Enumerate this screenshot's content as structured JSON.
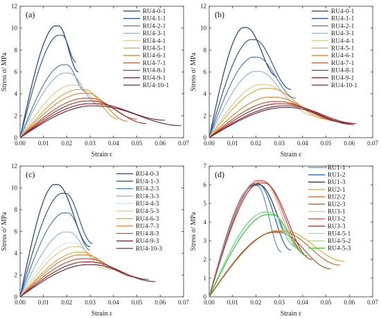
{
  "chart_data": [
    {
      "type": "line",
      "panel_label": "(a)",
      "xlabel": "Strain ε",
      "ylabel": "Stress σ/ MPa",
      "xlim": [
        0,
        0.07
      ],
      "ylim": [
        0,
        12
      ],
      "xticks": [
        "0.00",
        "0.01",
        "0.02",
        "0.03",
        "0.04",
        "0.05",
        "0.06",
        "0.07"
      ],
      "yticks": [
        "0",
        "2",
        "4",
        "6",
        "8",
        "10",
        "12"
      ],
      "grid": false,
      "legend_position": "top-right",
      "series": [
        {
          "name": "RU4-0-1",
          "color": "#1f3f7a",
          "peak_strain": 0.0165,
          "peak_stress": 10.2,
          "end_strain": 0.025,
          "end_stress": 6.0
        },
        {
          "name": "RU4-1-1",
          "color": "#2d5b9a",
          "peak_strain": 0.018,
          "peak_stress": 9.35,
          "end_strain": 0.024,
          "end_stress": 6.9
        },
        {
          "name": "RU4-2-1",
          "color": "#4a7eb8",
          "peak_strain": 0.02,
          "peak_stress": 6.65,
          "end_strain": 0.028,
          "end_stress": 4.2
        },
        {
          "name": "RU4-3-1",
          "color": "#8fb6dc",
          "peak_strain": 0.021,
          "peak_stress": 5.9,
          "end_strain": 0.033,
          "end_stress": 3.1
        },
        {
          "name": "RU4-4-1",
          "color": "#e7c88a",
          "peak_strain": 0.024,
          "peak_stress": 4.8,
          "end_strain": 0.036,
          "end_stress": 2.7
        },
        {
          "name": "RU4-5-1",
          "color": "#e2a93a",
          "peak_strain": 0.0275,
          "peak_stress": 4.4,
          "end_strain": 0.042,
          "end_stress": 1.7
        },
        {
          "name": "RU4-6-1",
          "color": "#d9893c",
          "peak_strain": 0.029,
          "peak_stress": 4.05,
          "end_strain": 0.046,
          "end_stress": 1.5
        },
        {
          "name": "RU4-7-1",
          "color": "#c4572e",
          "peak_strain": 0.03,
          "peak_stress": 3.6,
          "end_strain": 0.05,
          "end_stress": 1.7
        },
        {
          "name": "RU4-8-1",
          "color": "#b5332e",
          "peak_strain": 0.031,
          "peak_stress": 3.35,
          "end_strain": 0.054,
          "end_stress": 1.3
        },
        {
          "name": "RU4-9-1",
          "color": "#8a2a2a",
          "peak_strain": 0.032,
          "peak_stress": 3.1,
          "end_strain": 0.062,
          "end_stress": 1.6
        },
        {
          "name": "RU4-10-1",
          "color": "#6b2a45",
          "peak_strain": 0.033,
          "peak_stress": 2.9,
          "end_strain": 0.069,
          "end_stress": 1.1
        }
      ]
    },
    {
      "type": "line",
      "panel_label": "(b)",
      "xlabel": "Strain ε",
      "ylabel": "Stress σ/ MPa",
      "xlim": [
        0,
        0.07
      ],
      "ylim": [
        0,
        12
      ],
      "xticks": [
        "0.00",
        "0.01",
        "0.02",
        "0.03",
        "0.04",
        "0.05",
        "0.06",
        "0.07"
      ],
      "yticks": [
        "0",
        "2",
        "4",
        "6",
        "8",
        "10",
        "12"
      ],
      "grid": false,
      "legend_position": "top-right",
      "series": [
        {
          "name": "RU4-0-1",
          "color": "#1f3f7a",
          "peak_strain": 0.016,
          "peak_stress": 10.05,
          "end_strain": 0.029,
          "end_stress": 5.6
        },
        {
          "name": "RU4-1-1",
          "color": "#2d5b9a",
          "peak_strain": 0.0195,
          "peak_stress": 8.95,
          "end_strain": 0.035,
          "end_stress": 4.4
        },
        {
          "name": "RU4-2-1",
          "color": "#4a7eb8",
          "peak_strain": 0.0205,
          "peak_stress": 7.35,
          "end_strain": 0.037,
          "end_stress": 3.6
        },
        {
          "name": "RU4-3-1",
          "color": "#8fb6dc",
          "peak_strain": 0.0215,
          "peak_stress": 6.05,
          "end_strain": 0.038,
          "end_stress": 3.1
        },
        {
          "name": "RU4-4-1",
          "color": "#e7c88a",
          "peak_strain": 0.024,
          "peak_stress": 4.85,
          "end_strain": 0.045,
          "end_stress": 2.0
        },
        {
          "name": "RU4-5-1",
          "color": "#e2a93a",
          "peak_strain": 0.026,
          "peak_stress": 4.5,
          "end_strain": 0.05,
          "end_stress": 1.7
        },
        {
          "name": "RU4-6-1",
          "color": "#d9893c",
          "peak_strain": 0.028,
          "peak_stress": 3.7,
          "end_strain": 0.055,
          "end_stress": 1.5
        },
        {
          "name": "RU4-7-1",
          "color": "#c4572e",
          "peak_strain": 0.03,
          "peak_stress": 3.3,
          "end_strain": 0.058,
          "end_stress": 1.4
        },
        {
          "name": "RU4-8-1",
          "color": "#b5332e",
          "peak_strain": 0.032,
          "peak_stress": 3.1,
          "end_strain": 0.061,
          "end_stress": 1.3
        },
        {
          "name": "RU4-9-1",
          "color": "#8a2a2a",
          "peak_strain": 0.034,
          "peak_stress": 2.9,
          "end_strain": 0.063,
          "end_stress": 1.3
        },
        {
          "name": "RU4-10-1",
          "color": "#6b2a45",
          "peak_strain": 0.0345,
          "peak_stress": 2.75,
          "end_strain": 0.062,
          "end_stress": 1.2
        }
      ]
    },
    {
      "type": "line",
      "panel_label": "(c)",
      "xlabel": "Strain ε",
      "ylabel": "Stress σ/ MPa",
      "xlim": [
        0,
        0.07
      ],
      "ylim": [
        0,
        12
      ],
      "xticks": [
        "0.00",
        "0.01",
        "0.02",
        "0.03",
        "0.04",
        "0.05",
        "0.06",
        "0.07"
      ],
      "yticks": [
        "0",
        "2",
        "4",
        "6",
        "8",
        "10",
        "12"
      ],
      "grid": false,
      "legend_position": "top-right",
      "series": [
        {
          "name": "RU4-0-3",
          "color": "#1f3f7a",
          "peak_strain": 0.016,
          "peak_stress": 10.3,
          "end_strain": 0.03,
          "end_stress": 4.6
        },
        {
          "name": "RU4-1-3",
          "color": "#2d5b9a",
          "peak_strain": 0.0195,
          "peak_stress": 9.5,
          "end_strain": 0.031,
          "end_stress": 4.9
        },
        {
          "name": "RU4-2-3",
          "color": "#4a7eb8",
          "peak_strain": 0.0205,
          "peak_stress": 7.7,
          "end_strain": 0.03,
          "end_stress": 4.3
        },
        {
          "name": "RU4-3-3",
          "color": "#8fb6dc",
          "peak_strain": 0.021,
          "peak_stress": 5.95,
          "end_strain": 0.032,
          "end_stress": 3.5
        },
        {
          "name": "RU4-4-3",
          "color": "#cfe0ef",
          "peak_strain": 0.023,
          "peak_stress": 4.95,
          "end_strain": 0.034,
          "end_stress": 3.0
        },
        {
          "name": "RU4-5-3",
          "color": "#e7c88a",
          "peak_strain": 0.025,
          "peak_stress": 4.6,
          "end_strain": 0.036,
          "end_stress": 2.6
        },
        {
          "name": "RU4-6-3",
          "color": "#e2a93a",
          "peak_strain": 0.027,
          "peak_stress": 4.1,
          "end_strain": 0.04,
          "end_stress": 2.5
        },
        {
          "name": "RU4-7-3",
          "color": "#d9893c",
          "peak_strain": 0.028,
          "peak_stress": 3.85,
          "end_strain": 0.045,
          "end_stress": 2.2
        },
        {
          "name": "RU4-8-3",
          "color": "#c4572e",
          "peak_strain": 0.029,
          "peak_stress": 3.5,
          "end_strain": 0.05,
          "end_stress": 1.8
        },
        {
          "name": "RU4-9-3",
          "color": "#9a2b2b",
          "peak_strain": 0.03,
          "peak_stress": 3.2,
          "end_strain": 0.055,
          "end_stress": 1.6
        },
        {
          "name": "RU4-10-3",
          "color": "#6b2a45",
          "peak_strain": 0.031,
          "peak_stress": 2.95,
          "end_strain": 0.058,
          "end_stress": 1.4
        }
      ]
    },
    {
      "type": "line",
      "panel_label": "(d)",
      "xlabel": "Strain ε",
      "ylabel": "Stress σ/ MPa",
      "xlim": [
        0,
        0.07
      ],
      "ylim": [
        0,
        7
      ],
      "xticks": [
        "0.00",
        "0.01",
        "0.02",
        "0.03",
        "0.04",
        "0.05",
        "0.06",
        "0.07"
      ],
      "yticks": [
        "0",
        "1",
        "2",
        "3",
        "4",
        "5",
        "6",
        "7"
      ],
      "grid": false,
      "legend_position": "top-right",
      "series": [
        {
          "name": "RU1-1",
          "color": "#5b8fd0",
          "peak_strain": 0.0205,
          "peak_stress": 5.95,
          "end_strain": 0.031,
          "end_stress": 2.4
        },
        {
          "name": "RU1-2",
          "color": "#2c5fa6",
          "peak_strain": 0.021,
          "peak_stress": 6.05,
          "end_strain": 0.035,
          "end_stress": 2.5
        },
        {
          "name": "RU1-3",
          "color": "#1b3f78",
          "peak_strain": 0.0215,
          "peak_stress": 6.0,
          "end_strain": 0.037,
          "end_stress": 2.7
        },
        {
          "name": "RU2-1",
          "color": "#e2a93a",
          "peak_strain": 0.032,
          "peak_stress": 3.55,
          "end_strain": 0.058,
          "end_stress": 1.9
        },
        {
          "name": "RU2-2",
          "color": "#c8702c",
          "peak_strain": 0.031,
          "peak_stress": 3.5,
          "end_strain": 0.056,
          "end_stress": 1.7
        },
        {
          "name": "RU2-3",
          "color": "#a6522a",
          "peak_strain": 0.03,
          "peak_stress": 3.45,
          "end_strain": 0.052,
          "end_stress": 1.5
        },
        {
          "name": "RU3-1",
          "color": "#f0b2a2",
          "peak_strain": 0.0225,
          "peak_stress": 6.25,
          "end_strain": 0.04,
          "end_stress": 2.4
        },
        {
          "name": "RU3-2",
          "color": "#d65a4a",
          "peak_strain": 0.023,
          "peak_stress": 6.2,
          "end_strain": 0.042,
          "end_stress": 2.2
        },
        {
          "name": "RU3-3",
          "color": "#b03a34",
          "peak_strain": 0.0235,
          "peak_stress": 6.1,
          "end_strain": 0.044,
          "end_stress": 2.0
        },
        {
          "name": "RU4-5-1",
          "color": "#7de3e3",
          "peak_strain": 0.025,
          "peak_stress": 4.5,
          "end_strain": 0.038,
          "end_stress": 2.6
        },
        {
          "name": "RU4-5-2",
          "color": "#9ee27e",
          "peak_strain": 0.026,
          "peak_stress": 4.55,
          "end_strain": 0.04,
          "end_stress": 2.4
        },
        {
          "name": "RU4-5-3",
          "color": "#3cc23c",
          "peak_strain": 0.027,
          "peak_stress": 4.4,
          "end_strain": 0.042,
          "end_stress": 2.2
        }
      ]
    }
  ]
}
